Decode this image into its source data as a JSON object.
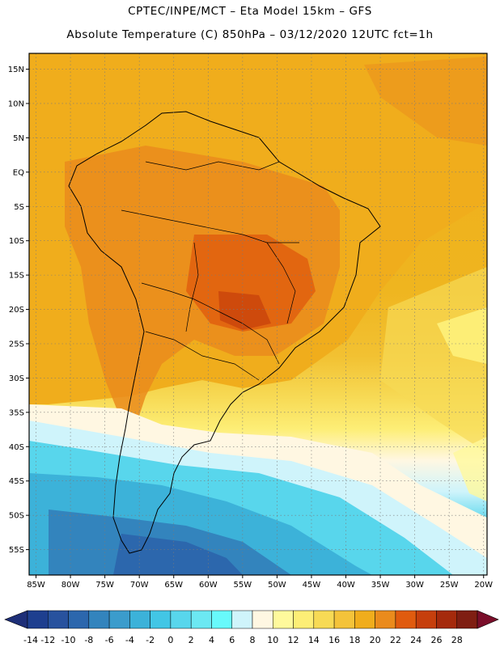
{
  "header": {
    "title_line1": "CPTEC/INPE/MCT –  Eta Model 15km – GFS",
    "title_line2": "Absolute Temperature (C) 850hPa – 03/12/2020 12UTC fct=1h"
  },
  "map": {
    "lat_labels": [
      "15N",
      "10N",
      "5N",
      "EQ",
      "5S",
      "10S",
      "15S",
      "20S",
      "25S",
      "30S",
      "35S",
      "40S",
      "45S",
      "50S",
      "55S"
    ],
    "lon_labels": [
      "85W",
      "80W",
      "75W",
      "70W",
      "65W",
      "60W",
      "55W",
      "50W",
      "45W",
      "40W",
      "35W",
      "30W",
      "25W",
      "20W"
    ]
  },
  "colorbar": {
    "labels": [
      "-14",
      "-12",
      "-10",
      "-8",
      "-6",
      "-4",
      "-2",
      "0",
      "2",
      "4",
      "6",
      "8",
      "10",
      "12",
      "14",
      "16",
      "18",
      "20",
      "22",
      "24",
      "26",
      "28"
    ],
    "colors": [
      "#1e3f8f",
      "#28529e",
      "#2c67ad",
      "#3384bd",
      "#3b9ccc",
      "#3cb2d9",
      "#42c6e5",
      "#58d6ec",
      "#6ce8f2",
      "#68f9fb",
      "#cff4fb",
      "#fff7e2",
      "#fff99c",
      "#fdee76",
      "#f7da55",
      "#f4c33a",
      "#f0ad1c",
      "#ea8b1c",
      "#e05b0e",
      "#c63f0c",
      "#a52a0c",
      "#7f1e12"
    ],
    "under_color": "#1e2f78",
    "over_color": "#7a0e2a"
  }
}
